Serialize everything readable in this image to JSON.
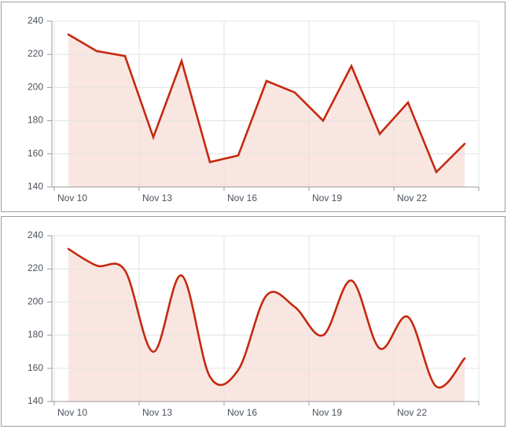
{
  "page": {
    "background": "#ffffff",
    "panel_border_color": "#9d9d9d"
  },
  "chart_data": [
    {
      "type": "area",
      "line_style": "linear",
      "title": "",
      "xlabel": "",
      "ylabel": "",
      "x": [
        "Nov 10",
        "Nov 11",
        "Nov 12",
        "Nov 13",
        "Nov 14",
        "Nov 15",
        "Nov 16",
        "Nov 17",
        "Nov 18",
        "Nov 19",
        "Nov 20",
        "Nov 21",
        "Nov 22",
        "Nov 23",
        "Nov 24"
      ],
      "values": [
        232,
        222,
        219,
        170,
        216,
        155,
        159,
        204,
        197,
        180,
        213,
        172,
        191,
        149,
        166
      ],
      "ylim": [
        140,
        240
      ],
      "yticks": [
        240,
        220,
        200,
        180,
        160,
        140
      ],
      "xtick_labels": [
        "Nov 10",
        "Nov 13",
        "Nov 16",
        "Nov 19",
        "Nov 22"
      ],
      "xtick_indices": [
        0,
        3,
        6,
        9,
        12
      ],
      "grid": true,
      "legend": false,
      "colors": {
        "line": "#c5290f",
        "fill": "#f9e6e1",
        "grid": "#e3e3e3",
        "axis": "#9b9b9b",
        "label": "#4a525c"
      }
    },
    {
      "type": "area",
      "line_style": "smooth",
      "title": "",
      "xlabel": "",
      "ylabel": "",
      "x": [
        "Nov 10",
        "Nov 11",
        "Nov 12",
        "Nov 13",
        "Nov 14",
        "Nov 15",
        "Nov 16",
        "Nov 17",
        "Nov 18",
        "Nov 19",
        "Nov 20",
        "Nov 21",
        "Nov 22",
        "Nov 23",
        "Nov 24"
      ],
      "values": [
        232,
        222,
        219,
        170,
        216,
        155,
        159,
        204,
        197,
        180,
        213,
        172,
        191,
        149,
        166
      ],
      "ylim": [
        140,
        240
      ],
      "yticks": [
        240,
        220,
        200,
        180,
        160,
        140
      ],
      "xtick_labels": [
        "Nov 10",
        "Nov 13",
        "Nov 16",
        "Nov 19",
        "Nov 22"
      ],
      "xtick_indices": [
        0,
        3,
        6,
        9,
        12
      ],
      "grid": true,
      "legend": false,
      "colors": {
        "line": "#c5290f",
        "fill": "#f9e6e1",
        "grid": "#e3e3e3",
        "axis": "#9b9b9b",
        "label": "#4a525c"
      }
    }
  ]
}
